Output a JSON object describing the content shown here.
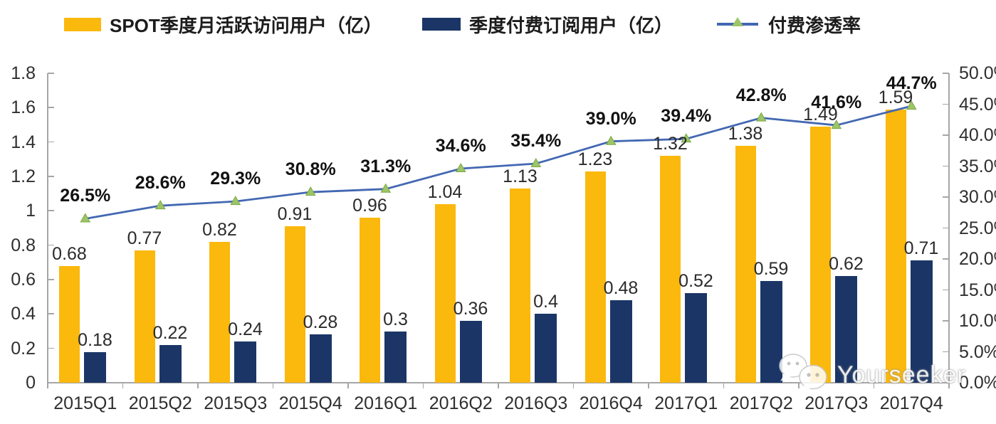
{
  "colors": {
    "mau_bar": "#FBB80D",
    "subs_bar": "#1B3666",
    "line": "#4368B2",
    "marker_fill": "#9DC567",
    "marker_edge": "#79A844",
    "axis": "#A6A6A6",
    "value_text": "#2B2B2B",
    "pct_text": "#121212"
  },
  "legend": {
    "items": [
      {
        "label": "SPOT季度月活跃访问用户（亿）",
        "marker": "yellow-bar-swatch"
      },
      {
        "label": "季度付费订阅用户（亿）",
        "marker": "navy-bar-swatch"
      },
      {
        "label": "付费渗透率",
        "marker": "blue-line-with-green-triangle"
      }
    ]
  },
  "chart_data": {
    "type": "bar",
    "subtype": "grouped-bar-with-line-combo",
    "title": "",
    "xlabel": "",
    "ylabel_left": "",
    "ylabel_right": "",
    "grid": false,
    "legend_position": "top",
    "categories": [
      "2015Q1",
      "2015Q2",
      "2015Q3",
      "2015Q4",
      "2016Q1",
      "2016Q2",
      "2016Q3",
      "2016Q4",
      "2017Q1",
      "2017Q2",
      "2017Q3",
      "2017Q4"
    ],
    "series": [
      {
        "name": "SPOT季度月活跃访问用户（亿）",
        "type": "bar",
        "axis": "left",
        "values": [
          0.68,
          0.77,
          0.82,
          0.91,
          0.96,
          1.04,
          1.13,
          1.23,
          1.32,
          1.38,
          1.49,
          1.59
        ],
        "labels": [
          "0.68",
          "0.77",
          "0.82",
          "0.91",
          "0.96",
          "1.04",
          "1.13",
          "1.23",
          "1.32",
          "1.38",
          "1.49",
          "1.59"
        ]
      },
      {
        "name": "季度付费订阅用户（亿）",
        "type": "bar",
        "axis": "left",
        "values": [
          0.18,
          0.22,
          0.24,
          0.28,
          0.3,
          0.36,
          0.4,
          0.48,
          0.52,
          0.59,
          0.62,
          0.71
        ],
        "labels": [
          "0.18",
          "0.22",
          "0.24",
          "0.28",
          "0.3",
          "0.36",
          "0.4",
          "0.48",
          "0.52",
          "0.59",
          "0.62",
          "0.71"
        ]
      },
      {
        "name": "付费渗透率",
        "type": "line",
        "axis": "right",
        "values": [
          26.5,
          28.6,
          29.3,
          30.8,
          31.3,
          34.6,
          35.4,
          39.0,
          39.4,
          42.8,
          41.6,
          44.7
        ],
        "labels": [
          "26.5%",
          "28.6%",
          "29.3%",
          "30.8%",
          "31.3%",
          "34.6%",
          "35.4%",
          "39.0%",
          "39.4%",
          "42.8%",
          "41.6%",
          "44.7%"
        ]
      }
    ],
    "left_axis": {
      "min": 0,
      "max": 1.8,
      "tick_labels": [
        "0",
        "0.2",
        "0.4",
        "0.6",
        "0.8",
        "1",
        "1.2",
        "1.4",
        "1.6",
        "1.8"
      ]
    },
    "right_axis": {
      "min": 0,
      "max": 50,
      "tick_labels": [
        "0.0%",
        "5.0%",
        "10.0%",
        "15.0%",
        "20.0%",
        "25.0%",
        "30.0%",
        "35.0%",
        "40.0%",
        "45.0%",
        "50.0%"
      ]
    }
  },
  "watermark": {
    "text": "Yourseeker",
    "icon": "wechat-bubbles-icon"
  }
}
